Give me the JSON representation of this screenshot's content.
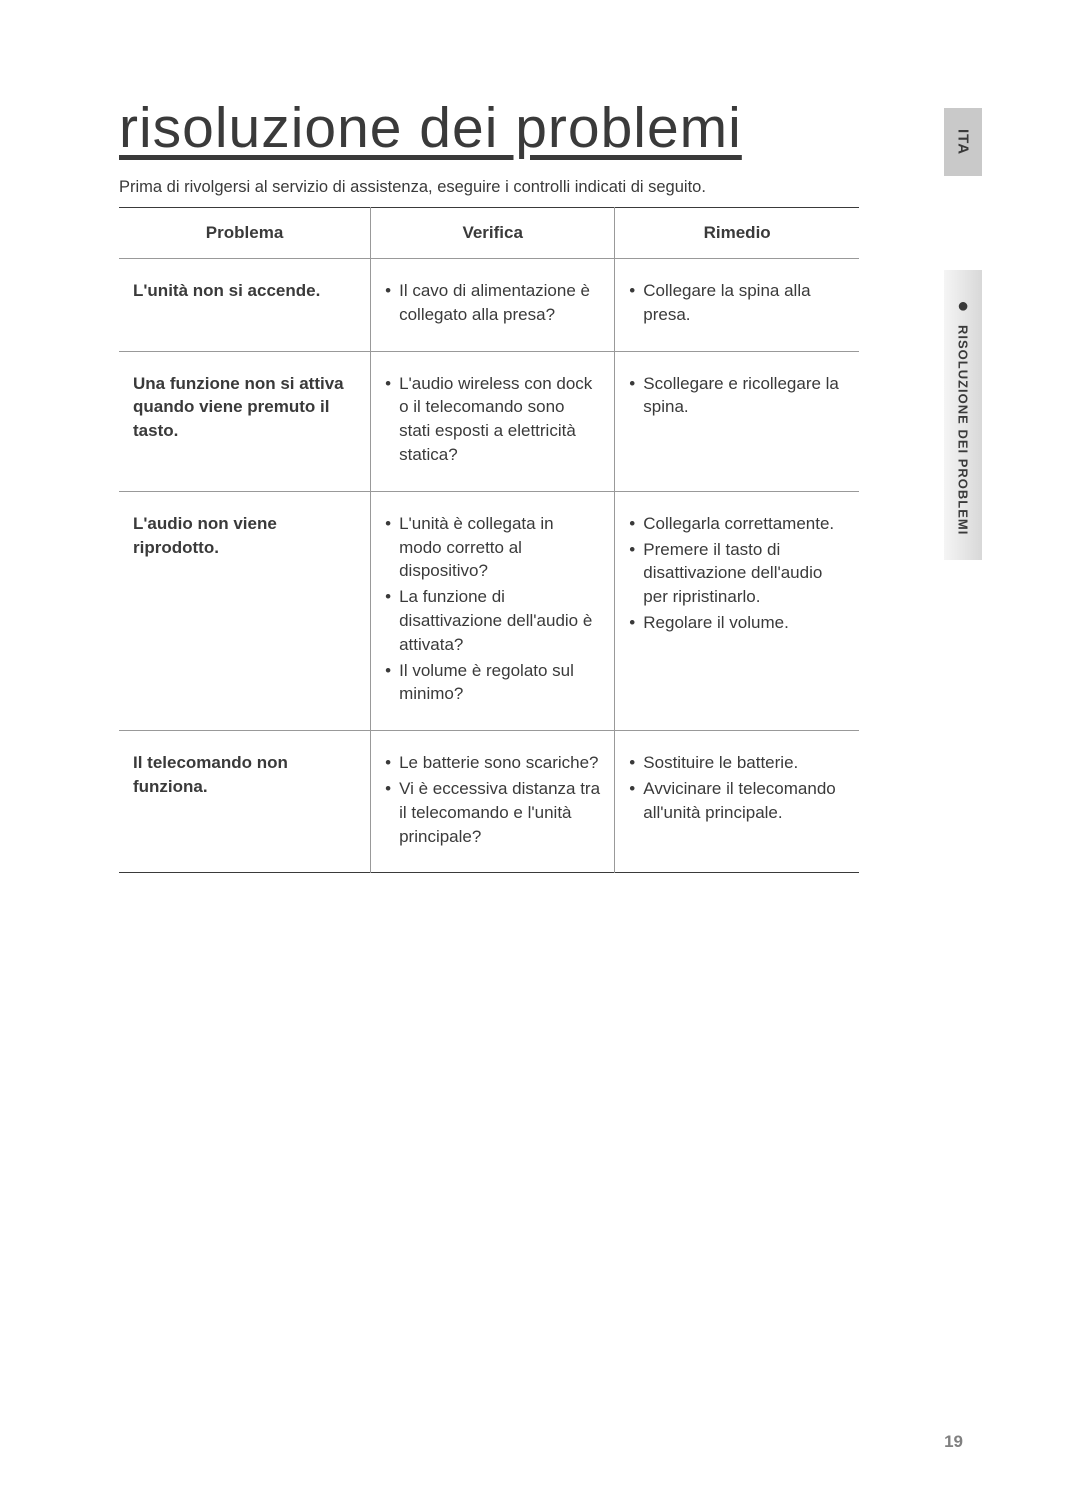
{
  "page_title": "risoluzione dei problemi",
  "intro_text": "Prima di rivolgersi al servizio di assistenza, eseguire i controlli indicati di seguito.",
  "side_tabs": {
    "language": "ITA",
    "section_label": "RISOLUZIONE DEI PROBLEMI"
  },
  "page_number": "19",
  "table": {
    "headers": {
      "problem": "Problema",
      "check": "Verifica",
      "remedy": "Rimedio"
    },
    "rows": [
      {
        "problem": "L'unità non si accende.",
        "checks": [
          "Il cavo di alimentazione è collegato alla presa?"
        ],
        "remedies": [
          "Collegare la spina alla presa."
        ]
      },
      {
        "problem": "Una funzione non si attiva quando viene premuto il tasto.",
        "checks": [
          "L'audio wireless con dock o il telecomando sono stati esposti a elettricità statica?"
        ],
        "remedies": [
          "Scollegare e ricollegare la spina."
        ]
      },
      {
        "problem": "L'audio non viene riprodotto.",
        "checks": [
          "L'unità è collegata in modo corretto al dispositivo?",
          "La funzione di disattivazione dell'audio è attivata?",
          "Il volume è regolato sul minimo?"
        ],
        "remedies": [
          "Collegarla correttamente.",
          "Premere il tasto di disattivazione dell'audio per ripristinarlo.",
          "Regolare il volume."
        ]
      },
      {
        "problem": "Il telecomando non funziona.",
        "checks": [
          "Le batterie sono scariche?",
          "Vi è eccessiva distanza tra il telecomando e l'unità principale?"
        ],
        "remedies": [
          "Sostituire le batterie.",
          "Avvicinare il telecomando all'unità principale."
        ]
      }
    ]
  },
  "colors": {
    "text": "#3a3a3a",
    "page_number": "#808080",
    "border_heavy": "#3a3a3a",
    "border_light": "#999999",
    "lang_tab_bg": "#c9c9c9",
    "section_tab_bg_start": "#f5f5f5",
    "section_tab_bg_end": "#d8d8d8",
    "background": "#ffffff"
  },
  "typography": {
    "title_fontsize": 57,
    "body_fontsize": 17,
    "intro_fontsize": 16.5,
    "side_lang_fontsize": 15,
    "side_section_fontsize": 13,
    "page_number_fontsize": 17
  }
}
